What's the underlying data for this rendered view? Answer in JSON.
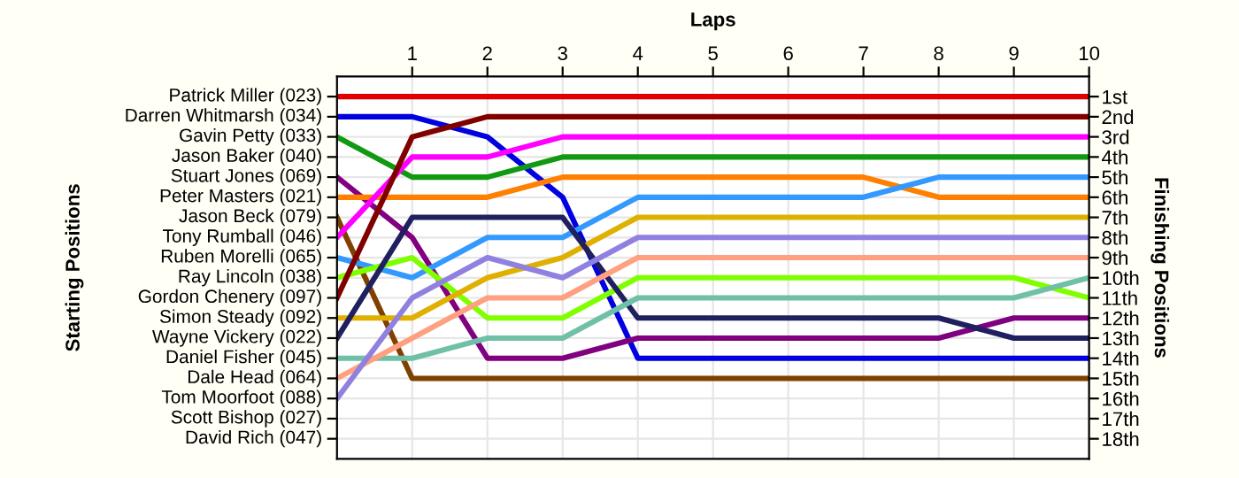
{
  "chart_data": {
    "type": "line",
    "xlabel": "Laps",
    "ylabel": "Finishing Positions",
    "x": [
      0,
      1,
      2,
      3,
      4,
      5,
      6,
      7,
      8,
      9,
      10
    ],
    "xlim": [
      0,
      10
    ],
    "xticks": [
      1,
      2,
      3,
      4,
      5,
      6,
      7,
      8,
      9,
      10
    ],
    "ylim": [
      19,
      0
    ],
    "annotations": [
      "Starting Positions",
      "Patrick Miller (023)",
      "Darren Whitmarsh (034)",
      "Gavin Petty (033)",
      "Jason Baker (040)",
      "Stuart Jones (069)",
      "Peter Masters (021)",
      "Jason Beck (079)",
      "Tony Rumball (046)",
      "Ruben Morelli (065)",
      "Ray Lincoln (038)",
      "Gordon Chenery (097)",
      "Simon Steady (092)",
      "Wayne Vickery (022)",
      "Daniel Fisher (045)",
      "Dale Head (064)",
      "Tom Moorfoot (088)",
      "Scott Bishop (027)",
      "David Rich (047)"
    ],
    "yticks": [
      {
        "value": 1,
        "label": "1st"
      },
      {
        "value": 2,
        "label": "2nd"
      },
      {
        "value": 3,
        "label": "3rd"
      },
      {
        "value": 4,
        "label": "4th"
      },
      {
        "value": 5,
        "label": "5th"
      },
      {
        "value": 6,
        "label": "6th"
      },
      {
        "value": 7,
        "label": "7th"
      },
      {
        "value": 8,
        "label": "8th"
      },
      {
        "value": 9,
        "label": "9th"
      },
      {
        "value": 10,
        "label": "10th"
      },
      {
        "value": 11,
        "label": "11th"
      },
      {
        "value": 12,
        "label": "12th"
      },
      {
        "value": 13,
        "label": "13th"
      },
      {
        "value": 14,
        "label": "14th"
      },
      {
        "value": 15,
        "label": "15th"
      },
      {
        "value": 16,
        "label": "16th"
      },
      {
        "value": 17,
        "label": "17th"
      },
      {
        "value": 18,
        "label": "18th"
      }
    ],
    "grid": true,
    "legend": false,
    "marker": "none",
    "line_style": "solid",
    "series": [
      {
        "color": "#e00000",
        "values": [
          1,
          1,
          1,
          1,
          1,
          1,
          1,
          1,
          1,
          1,
          1
        ]
      },
      {
        "color": "#0000e0",
        "values": [
          2,
          2,
          3,
          6,
          14,
          14,
          14,
          14,
          14,
          14,
          14
        ]
      },
      {
        "color": "#119911",
        "values": [
          3,
          5,
          5,
          4,
          4,
          4,
          4,
          4,
          4,
          4,
          4
        ]
      },
      {
        "color": "#800080",
        "values": [
          5,
          8,
          14,
          14,
          13,
          13,
          13,
          13,
          13,
          12,
          12
        ]
      },
      {
        "color": "#ff8000",
        "values": [
          6,
          6,
          6,
          5,
          5,
          5,
          5,
          5,
          6,
          6,
          6
        ]
      },
      {
        "color": "#804000",
        "values": [
          7,
          15,
          15,
          15,
          15,
          15,
          15,
          15,
          15,
          15,
          15
        ]
      },
      {
        "color": "#ff00ff",
        "values": [
          8,
          4,
          4,
          3,
          3,
          3,
          3,
          3,
          3,
          3,
          3
        ]
      },
      {
        "color": "#3399ff",
        "values": [
          9,
          10,
          8,
          8,
          6,
          6,
          6,
          6,
          5,
          5,
          5
        ]
      },
      {
        "color": "#80ff00",
        "values": [
          10,
          9,
          12,
          12,
          10,
          10,
          10,
          10,
          10,
          10,
          11
        ]
      },
      {
        "color": "#800000",
        "values": [
          11,
          3,
          2,
          2,
          2,
          2,
          2,
          2,
          2,
          2,
          2
        ]
      },
      {
        "color": "#e0b000",
        "values": [
          12,
          12,
          10,
          9,
          7,
          7,
          7,
          7,
          7,
          7,
          7
        ]
      },
      {
        "color": "#202060",
        "values": [
          13,
          7,
          7,
          7,
          12,
          12,
          12,
          12,
          12,
          13,
          13
        ]
      },
      {
        "color": "#70c0a8",
        "values": [
          14,
          14,
          13,
          13,
          11,
          11,
          11,
          11,
          11,
          11,
          10
        ]
      },
      {
        "color": "#ffa080",
        "values": [
          15,
          13,
          11,
          11,
          9,
          9,
          9,
          9,
          9,
          9,
          9
        ]
      },
      {
        "color": "#9080e0",
        "values": [
          16,
          11,
          9,
          10,
          8,
          8,
          8,
          8,
          8,
          8,
          8
        ]
      }
    ]
  }
}
